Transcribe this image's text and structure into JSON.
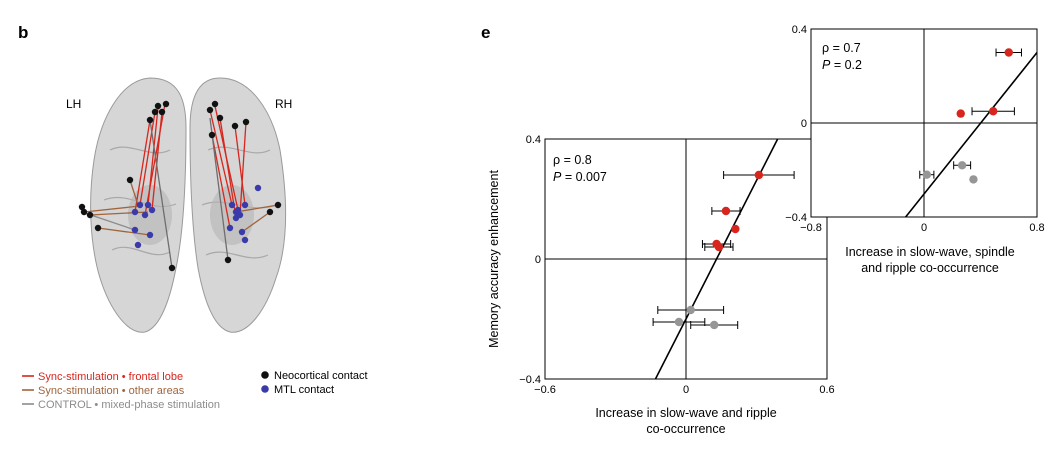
{
  "panels": {
    "b": {
      "letter": "b",
      "hemisphere_left": "LH",
      "hemisphere_right": "RH",
      "legend_lines": [
        {
          "label": "Sync-stimulation • frontal lobe",
          "color": "#d7261e"
        },
        {
          "label": "Sync-stimulation • other areas",
          "color": "#a0643c"
        },
        {
          "label": "CONTROL • mixed-phase stimulation",
          "color": "#8c8c8c"
        }
      ],
      "legend_dots": [
        {
          "label": "Neocortical contact",
          "color": "#111111"
        },
        {
          "label": "MTL contact",
          "color": "#3a3aa8"
        }
      ]
    },
    "e": {
      "letter": "e"
    }
  },
  "colors": {
    "red_point": "#d7261e",
    "gray_point": "#969696",
    "brain_fill": "#c8c8c8"
  },
  "chart_data": [
    {
      "type": "scatter",
      "xlabel_line1": "Increase in slow-wave and ripple",
      "xlabel_line2": "co-occurrence",
      "ylabel": "Memory accuracy enhancement",
      "xlim": [
        -0.6,
        0.6
      ],
      "ylim": [
        -0.4,
        0.4
      ],
      "xticks": [
        "−0.6",
        "0",
        "0.6"
      ],
      "yticks": [
        "0.4",
        "0",
        "−0.4"
      ],
      "stat_rho": "ρ = 0.8",
      "stat_p_label": "P",
      "stat_p_value": " = 0.007",
      "fit_line": {
        "x1": -0.13,
        "y1": -0.4,
        "x2": 0.39,
        "y2": 0.4
      },
      "points": [
        {
          "x": 0.31,
          "y": 0.28,
          "xerr": 0.15,
          "group": "red"
        },
        {
          "x": 0.17,
          "y": 0.16,
          "xerr": 0.06,
          "group": "red"
        },
        {
          "x": 0.21,
          "y": 0.1,
          "xerr": 0.0,
          "group": "red"
        },
        {
          "x": 0.13,
          "y": 0.05,
          "xerr": 0.06,
          "group": "red"
        },
        {
          "x": 0.14,
          "y": 0.04,
          "xerr": 0.06,
          "group": "red"
        },
        {
          "x": 0.02,
          "y": -0.17,
          "xerr": 0.14,
          "group": "gray"
        },
        {
          "x": -0.03,
          "y": -0.21,
          "xerr": 0.11,
          "group": "gray"
        },
        {
          "x": 0.12,
          "y": -0.22,
          "xerr": 0.1,
          "group": "gray"
        }
      ]
    },
    {
      "type": "scatter",
      "xlabel_line1": "Increase in slow-wave, spindle",
      "xlabel_line2": "and ripple co-occurrence",
      "ylabel": "",
      "xlim": [
        -0.8,
        0.8
      ],
      "ylim": [
        -0.4,
        0.4
      ],
      "xticks": [
        "−0.8",
        "0",
        "0.8"
      ],
      "yticks": [
        "0.4",
        "0",
        "−0.4"
      ],
      "stat_rho": "ρ = 0.7",
      "stat_p_label": "P",
      "stat_p_value": " = 0.2",
      "fit_line": {
        "x1": -0.13,
        "y1": -0.4,
        "x2": 0.8,
        "y2": 0.3
      },
      "points": [
        {
          "x": 0.6,
          "y": 0.3,
          "xerr": 0.09,
          "group": "red"
        },
        {
          "x": 0.49,
          "y": 0.05,
          "xerr": 0.15,
          "group": "red"
        },
        {
          "x": 0.26,
          "y": 0.04,
          "xerr": 0.0,
          "group": "red"
        },
        {
          "x": 0.27,
          "y": -0.18,
          "xerr": 0.06,
          "group": "gray"
        },
        {
          "x": 0.02,
          "y": -0.22,
          "xerr": 0.05,
          "group": "gray"
        },
        {
          "x": 0.35,
          "y": -0.24,
          "xerr": 0.0,
          "group": "gray"
        }
      ]
    }
  ]
}
